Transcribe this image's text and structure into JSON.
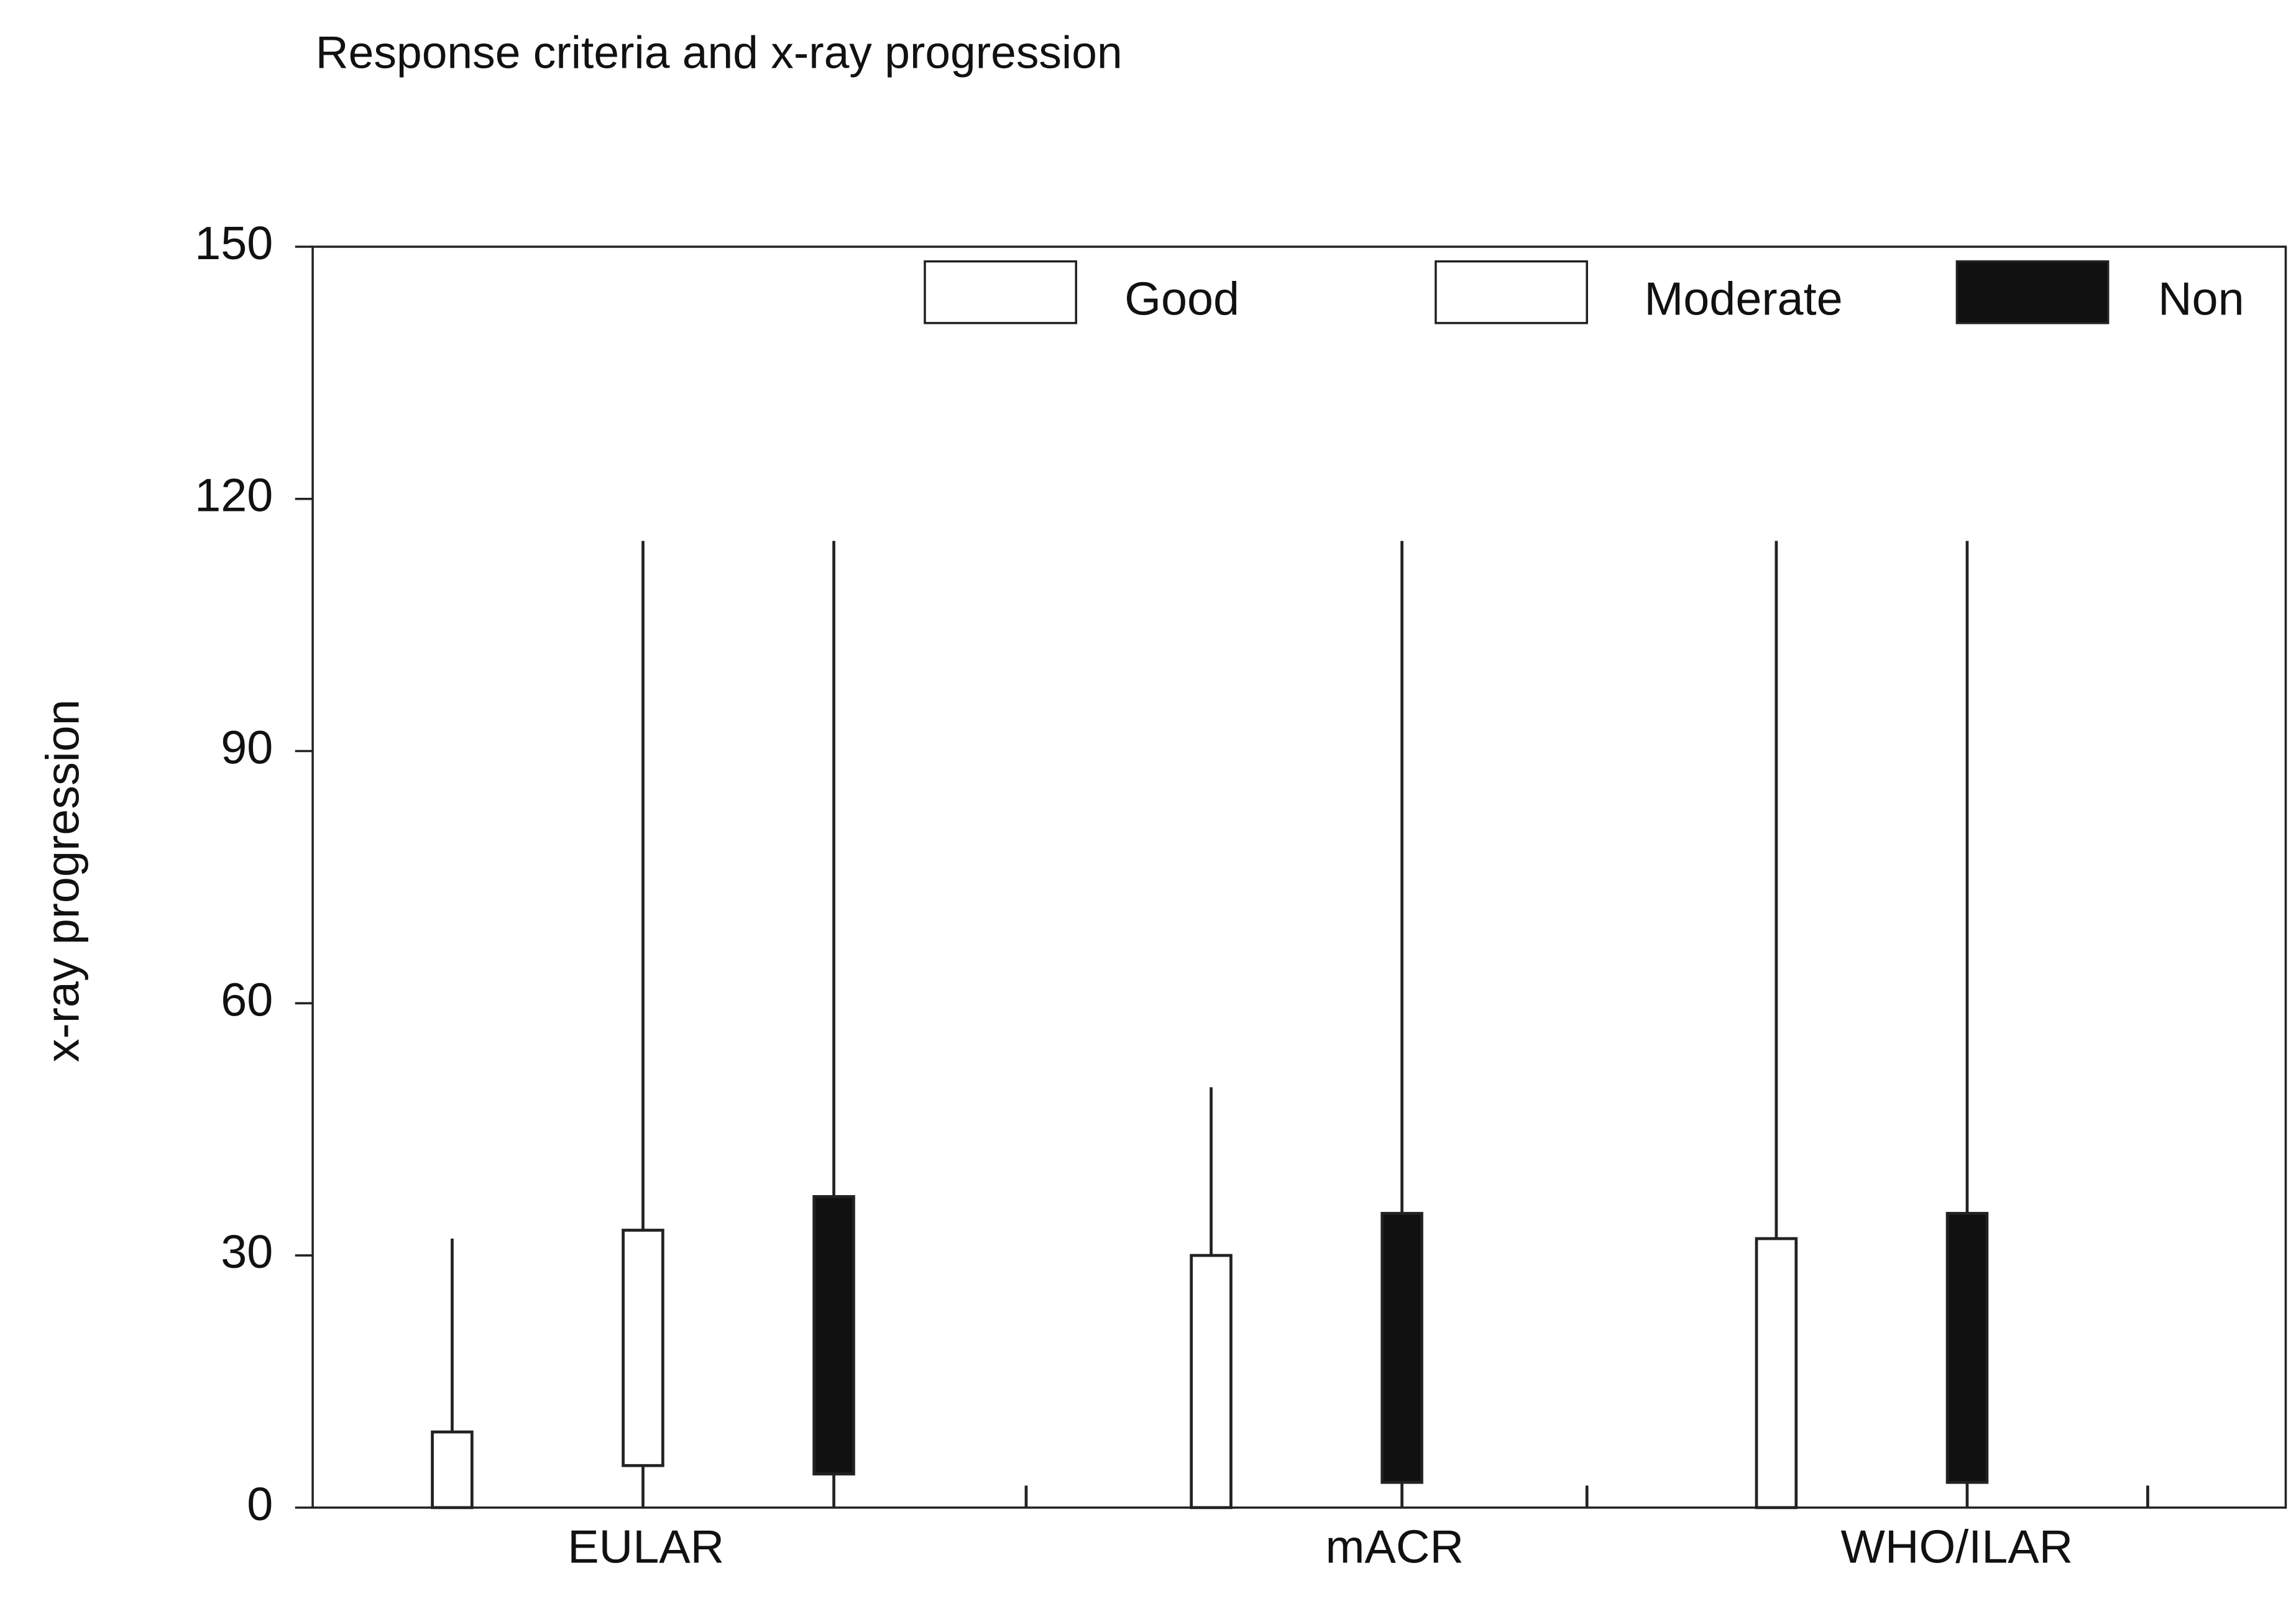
{
  "chart_data": {
    "type": "box",
    "title": "Response criteria and x-ray progression",
    "y_label": "x-ray progression",
    "categories": [
      "EULAR",
      "mACR",
      "WHO/ILAR"
    ],
    "ylim": [
      0,
      150
    ],
    "yticks": [
      0,
      30,
      60,
      90,
      120,
      150
    ],
    "legend": "top-right",
    "series": [
      {
        "name": "Good",
        "color": "#ffffff",
        "min": [
          0,
          0,
          0
        ],
        "q1": [
          0,
          0,
          0
        ],
        "q3": [
          9,
          30,
          32
        ],
        "max": [
          32,
          50,
          115
        ]
      },
      {
        "name": "Moderate",
        "color": "#ffffff",
        "min": [
          0,
          null,
          null
        ],
        "q1": [
          5,
          null,
          null
        ],
        "q3": [
          33,
          null,
          null
        ],
        "max": [
          115,
          null,
          null
        ]
      },
      {
        "name": "Non",
        "color": "#111111",
        "min": [
          0,
          0,
          0
        ],
        "q1": [
          4,
          3,
          3
        ],
        "q3": [
          37,
          35,
          35
        ],
        "max": [
          115,
          115,
          115
        ]
      }
    ]
  }
}
